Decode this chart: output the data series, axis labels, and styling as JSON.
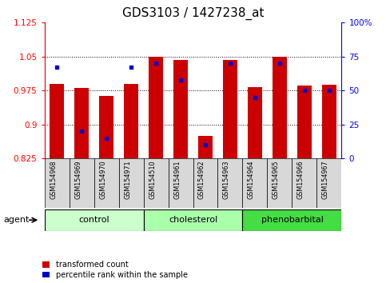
{
  "title": "GDS3103 / 1427238_at",
  "samples": [
    "GSM154968",
    "GSM154969",
    "GSM154970",
    "GSM154971",
    "GSM154510",
    "GSM154961",
    "GSM154962",
    "GSM154963",
    "GSM154964",
    "GSM154965",
    "GSM154966",
    "GSM154967"
  ],
  "transformed_count": [
    0.99,
    0.98,
    0.963,
    0.99,
    1.05,
    1.043,
    0.875,
    1.043,
    0.982,
    1.05,
    0.986,
    0.987
  ],
  "percentile_rank": [
    67,
    20,
    15,
    67,
    70,
    58,
    10,
    70,
    45,
    70,
    50,
    50
  ],
  "groups": [
    {
      "label": "control",
      "start": 0,
      "end": 3,
      "color": "#ccffcc"
    },
    {
      "label": "cholesterol",
      "start": 4,
      "end": 7,
      "color": "#aaffaa"
    },
    {
      "label": "phenobarbital",
      "start": 8,
      "end": 11,
      "color": "#44dd44"
    }
  ],
  "ylim_left": [
    0.825,
    1.125
  ],
  "ylim_right": [
    0,
    100
  ],
  "yticks_left": [
    0.825,
    0.9,
    0.975,
    1.05,
    1.125
  ],
  "ytick_labels_left": [
    "0.825",
    "0.9",
    "0.975",
    "1.05",
    "1.125"
  ],
  "yticks_right": [
    0,
    25,
    50,
    75,
    100
  ],
  "ytick_labels_right": [
    "0",
    "25",
    "50",
    "75",
    "100%"
  ],
  "bar_color": "#cc0000",
  "dot_color": "#0000cc",
  "baseline": 0.825,
  "grid_values": [
    0.9,
    0.975,
    1.05
  ],
  "agent_label": "agent",
  "legend_red": "transformed count",
  "legend_blue": "percentile rank within the sample",
  "title_fontsize": 11,
  "tick_fontsize": 7.5,
  "label_fontsize": 8,
  "bar_width": 0.6
}
